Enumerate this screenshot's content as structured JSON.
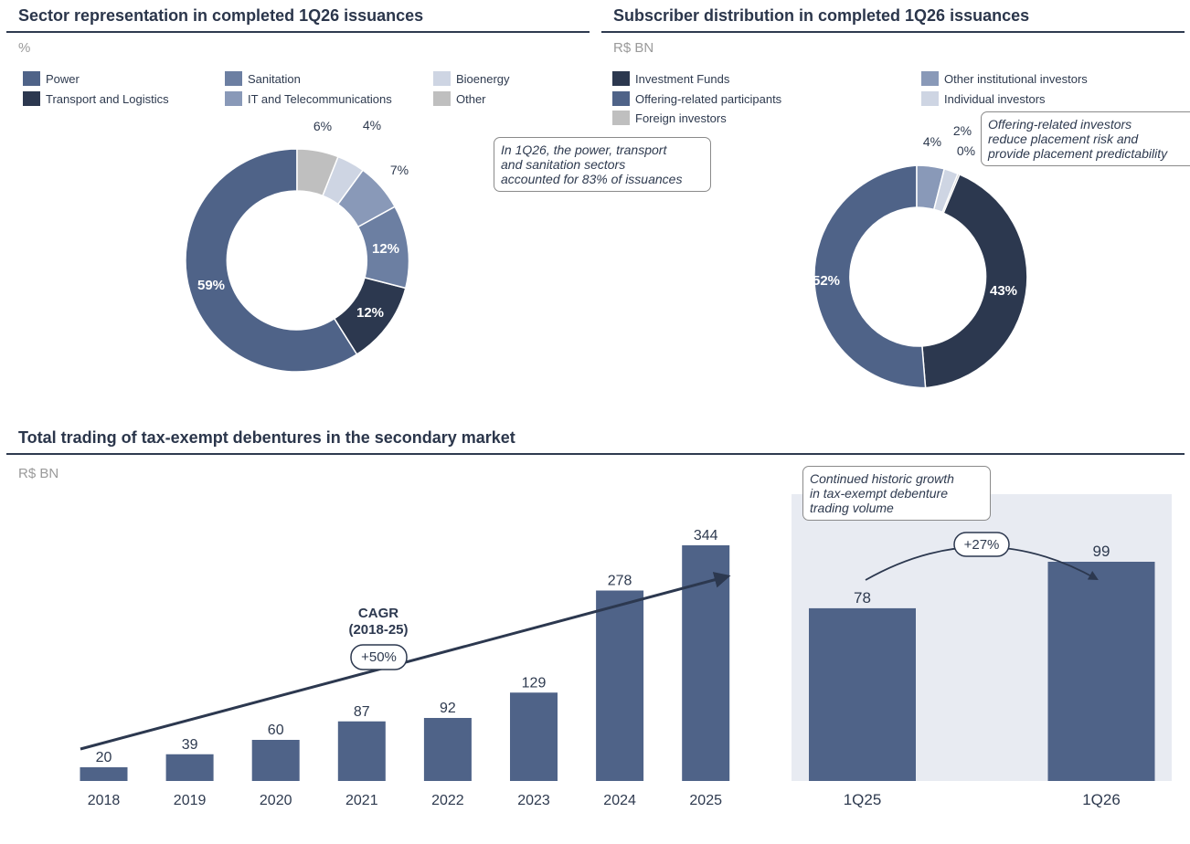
{
  "colors": {
    "power": "#4f6388",
    "transport": "#2c384f",
    "sanitation": "#6c7fa2",
    "it": "#8999b8",
    "bioenergy": "#ced5e3",
    "other": "#bfbfbf",
    "highlight_bg": "#e8ebf2",
    "bar": "#4f6388"
  },
  "sector": {
    "title": "Sector representation in completed 1Q26 issuances",
    "unit": "%",
    "note": [
      "In 1Q26, the power, transport",
      "and sanitation sectors",
      "accounted for 83% of issuances"
    ],
    "legend": [
      "Power",
      "Transport and Logistics",
      "Sanitation",
      "IT and Telecommunications",
      "Bioenergy",
      "Other"
    ]
  },
  "subscriber": {
    "title": "Subscriber distribution in completed 1Q26 issuances",
    "unit": "R$ BN",
    "note": [
      "Offering-related investors",
      "reduce placement risk and",
      "provide placement predictability"
    ],
    "legend": [
      "Investment Funds",
      "Offering-related participants",
      "Foreign investors",
      "Other institutional investors",
      "Individual investors"
    ]
  },
  "trading": {
    "title": "Total trading of tax-exempt debentures in the secondary market",
    "unit": "R$ BN",
    "cagr_label": [
      "CAGR",
      "(2018-25)"
    ],
    "cagr_value": "+50%",
    "note": [
      "Continued historic growth",
      "in tax-exempt debenture",
      "trading volume"
    ],
    "growth_label": "+27%"
  },
  "chart_data": [
    {
      "type": "pie",
      "title": "Sector representation in completed 1Q26 issuances",
      "unit": "%",
      "categories": [
        "Power",
        "Transport and Logistics",
        "Sanitation",
        "IT and Telecommunications",
        "Bioenergy",
        "Other"
      ],
      "values": [
        59,
        12,
        12,
        7,
        4,
        6
      ],
      "labels": [
        "59%",
        "12%",
        "12%",
        "7%",
        "4%",
        "6%"
      ]
    },
    {
      "type": "pie",
      "title": "Subscriber distribution in completed 1Q26 issuances",
      "unit": "R$ BN",
      "categories": [
        "Investment Funds",
        "Offering-related participants",
        "Foreign investors",
        "Other institutional investors",
        "Individual investors"
      ],
      "values": [
        43,
        52,
        0.3,
        4,
        2
      ],
      "labels": [
        "43%",
        "52%",
        "0%",
        "4%",
        "2%"
      ]
    },
    {
      "type": "bar",
      "title": "Total trading of tax-exempt debentures in the secondary market",
      "unit": "R$ BN",
      "categories": [
        "2018",
        "2019",
        "2020",
        "2021",
        "2022",
        "2023",
        "2024",
        "2025"
      ],
      "values": [
        20,
        39,
        60,
        87,
        92,
        129,
        278,
        344
      ],
      "ylim": [
        0,
        344
      ]
    },
    {
      "type": "bar",
      "unit": "R$ BN",
      "categories": [
        "1Q25",
        "1Q26"
      ],
      "values": [
        78,
        99
      ],
      "ylim": [
        0,
        99
      ]
    }
  ]
}
